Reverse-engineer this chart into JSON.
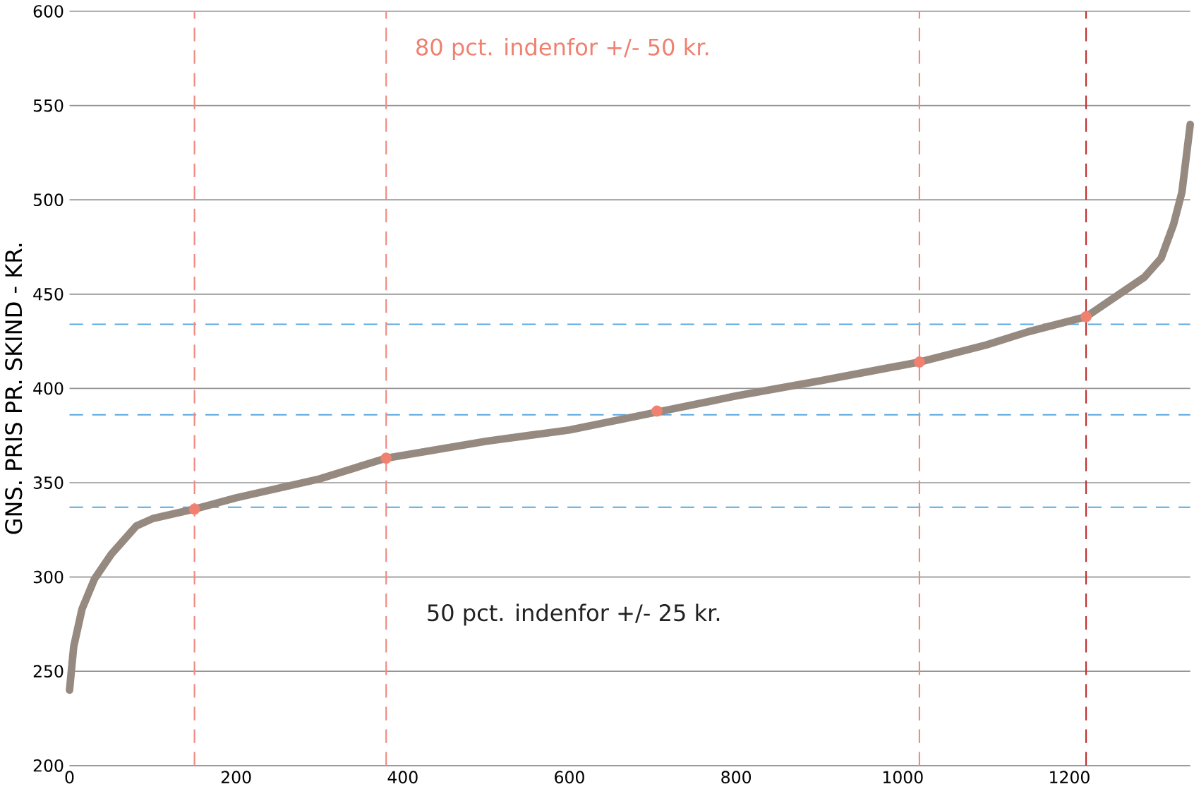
{
  "chart_data": {
    "type": "line",
    "ylabel": "GNS. PRIS PR. SKIND - KR.",
    "annotations": [
      "80 pct. indenfor +/- 50 kr.",
      "50 pct. indenfor +/- 25 kr."
    ],
    "xlim": [
      0,
      1345
    ],
    "ylim": [
      200,
      600
    ],
    "xticks": [
      0,
      200,
      400,
      600,
      800,
      1000,
      1200
    ],
    "yticks": [
      200,
      250,
      300,
      350,
      400,
      450,
      500,
      550,
      600
    ],
    "grid": "y",
    "series": [
      {
        "color": "#968a80",
        "marker": "none",
        "x": [
          0,
          5,
          15,
          30,
          50,
          80,
          100,
          150,
          200,
          300,
          380,
          500,
          600,
          700,
          800,
          900,
          1020,
          1100,
          1150,
          1220,
          1260,
          1290,
          1310,
          1325,
          1335,
          1345
        ],
        "values": [
          240,
          263,
          283,
          299,
          312,
          327,
          331,
          336,
          342,
          352,
          363,
          372,
          378,
          387,
          396,
          404,
          414,
          423,
          430,
          438,
          450,
          459,
          469,
          487,
          504,
          540
        ]
      },
      {
        "type": "scatter",
        "color": "#f08070",
        "marker": "circle",
        "x": [
          150,
          380,
          705,
          1020,
          1220
        ],
        "values": [
          336,
          363,
          388,
          414,
          438
        ]
      }
    ],
    "ref_lines": [
      {
        "axis": "y",
        "value": 337,
        "color": "#5aa8e0",
        "line_style": "dashed"
      },
      {
        "axis": "y",
        "value": 386,
        "color": "#5aa8e0",
        "line_style": "dashed"
      },
      {
        "axis": "y",
        "value": 434,
        "color": "#5aa8e0",
        "line_style": "dashed"
      },
      {
        "axis": "x",
        "value": 150,
        "color": "#f08a80",
        "line_style": "dashed"
      },
      {
        "axis": "x",
        "value": 380,
        "color": "#f08a80",
        "line_style": "dashed"
      },
      {
        "axis": "x",
        "value": 1020,
        "color": "#f08a80",
        "line_style": "dashed"
      },
      {
        "axis": "x",
        "value": 1220,
        "color": "#c03030",
        "line_style": "dashed"
      }
    ]
  }
}
